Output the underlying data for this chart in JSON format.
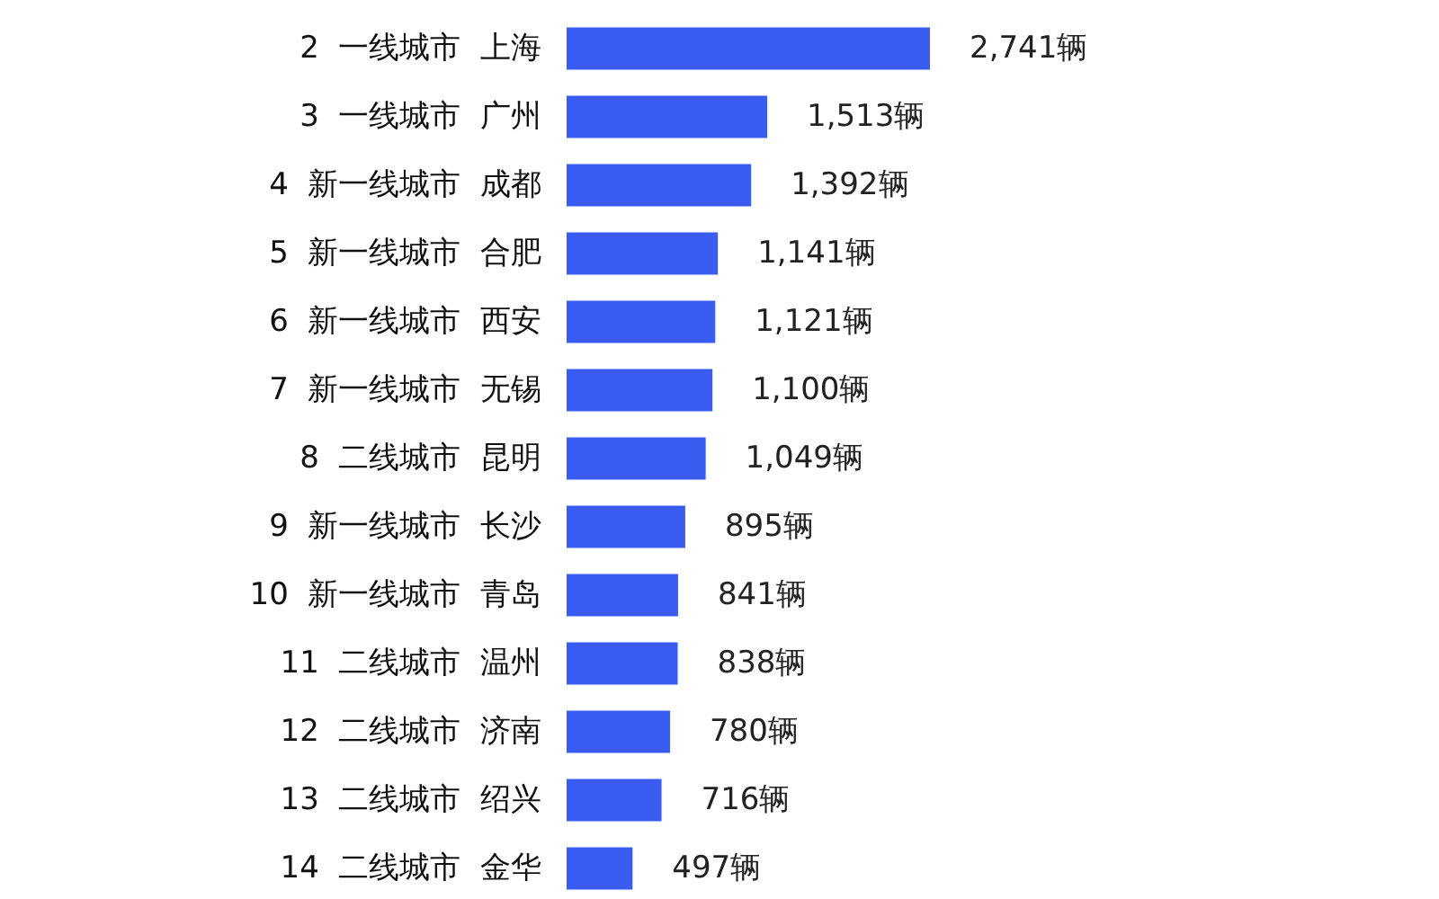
{
  "chart_data": {
    "type": "bar",
    "orientation": "horizontal",
    "categories": [
      "2  一线城市  上海",
      "3  一线城市  广州",
      "4  新一线城市  成都",
      "5  新一线城市  合肥",
      "6  新一线城市  西安",
      "7  新一线城市  无锡",
      "8  二线城市  昆明",
      "9  新一线城市  长沙",
      "10  新一线城市  青岛",
      "11  二线城市  温州",
      "12  二线城市  济南",
      "13  二线城市  绍兴",
      "14  二线城市  金华"
    ],
    "values": [
      2741,
      1513,
      1392,
      1141,
      1121,
      1100,
      1049,
      895,
      841,
      838,
      780,
      716,
      497
    ],
    "value_labels": [
      "2,741辆",
      "1,513辆",
      "1,392辆",
      "1,141辆",
      "1,121辆",
      "1,100辆",
      "1,049辆",
      "895辆",
      "841辆",
      "838辆",
      "780辆",
      "716辆",
      "497辆"
    ],
    "color": "#3a5cf0"
  }
}
